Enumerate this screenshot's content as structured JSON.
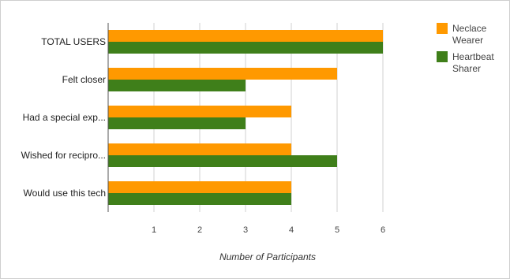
{
  "chart_data": {
    "type": "bar",
    "orientation": "horizontal",
    "categories": [
      "TOTAL USERS",
      "Felt closer",
      "Had a special exp...",
      "Wished for recipro...",
      "Would use this tech"
    ],
    "series": [
      {
        "name_lines": [
          "Neclace",
          "Wearer"
        ],
        "color": "#ff9900",
        "values": [
          6,
          5,
          4,
          4,
          4
        ]
      },
      {
        "name_lines": [
          "Heartbeat",
          "Sharer"
        ],
        "color": "#3f7f1a",
        "values": [
          6,
          3,
          3,
          5,
          4
        ]
      }
    ],
    "xlabel": "Number of Participants",
    "xlim": [
      0,
      6
    ],
    "xticks": [
      "1",
      "2",
      "3",
      "4",
      "5",
      "6"
    ],
    "grid": true,
    "legend_position": "top-right"
  }
}
